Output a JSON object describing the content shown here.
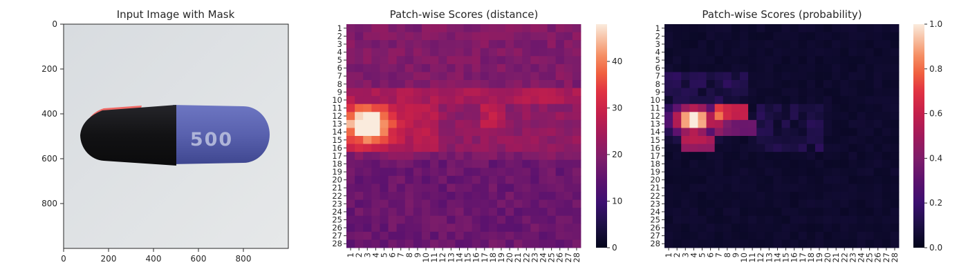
{
  "chart_data": [
    {
      "type": "image",
      "title": "Input Image with Mask",
      "xticks": [
        0,
        200,
        400,
        600,
        800
      ],
      "yticks": [
        0,
        200,
        400,
        600,
        800
      ],
      "xlim": [
        0,
        1000
      ],
      "ylim": [
        0,
        1000
      ],
      "image_description_labels": {
        "pill_text": "500"
      },
      "colors": {
        "background": "#dfe2e4",
        "pill_blue": "#5a63b0",
        "pill_black": "#141416",
        "mask_red": "#f06060"
      }
    },
    {
      "type": "heatmap",
      "title": "Patch-wise Scores (distance)",
      "rows": [
        "1",
        "2",
        "3",
        "4",
        "5",
        "6",
        "7",
        "8",
        "9",
        "10",
        "11",
        "12",
        "13",
        "14",
        "15",
        "16",
        "17",
        "18",
        "19",
        "20",
        "21",
        "22",
        "23",
        "24",
        "25",
        "26",
        "27",
        "28"
      ],
      "cols": [
        "1",
        "2",
        "3",
        "4",
        "5",
        "6",
        "7",
        "8",
        "9",
        "10",
        "11",
        "12",
        "13",
        "14",
        "15",
        "16",
        "17",
        "18",
        "19",
        "20",
        "21",
        "22",
        "23",
        "24",
        "25",
        "26",
        "27",
        "28"
      ],
      "colorbar": {
        "min": 0,
        "max": 48,
        "ticks": [
          0,
          10,
          20,
          30,
          40
        ]
      },
      "colormap": "rocket",
      "hotspot": {
        "rows": [
          11,
          16
        ],
        "cols": [
          1,
          7
        ],
        "peak_row": 13,
        "peak_col": 3,
        "peak_value": 48
      }
    },
    {
      "type": "heatmap",
      "title": "Patch-wise Scores (probability)",
      "rows": [
        "1",
        "2",
        "3",
        "4",
        "5",
        "6",
        "7",
        "8",
        "9",
        "10",
        "11",
        "12",
        "13",
        "14",
        "15",
        "16",
        "17",
        "18",
        "19",
        "20",
        "21",
        "22",
        "23",
        "24",
        "25",
        "26",
        "27",
        "28"
      ],
      "cols": [
        "1",
        "2",
        "3",
        "4",
        "5",
        "6",
        "7",
        "8",
        "9",
        "10",
        "11",
        "12",
        "13",
        "14",
        "15",
        "16",
        "17",
        "18",
        "19",
        "20",
        "21",
        "22",
        "23",
        "24",
        "25",
        "26",
        "27",
        "28"
      ],
      "colorbar": {
        "min": 0,
        "max": 1,
        "ticks": [
          "0.0",
          "0.2",
          "0.4",
          "0.6",
          "0.8",
          "1.0"
        ]
      },
      "colormap": "rocket",
      "hotspot": {
        "rows": [
          11,
          14
        ],
        "cols": [
          2,
          6
        ],
        "peak_row": 12,
        "peak_col": 4,
        "peak_value": 1.0
      }
    }
  ]
}
